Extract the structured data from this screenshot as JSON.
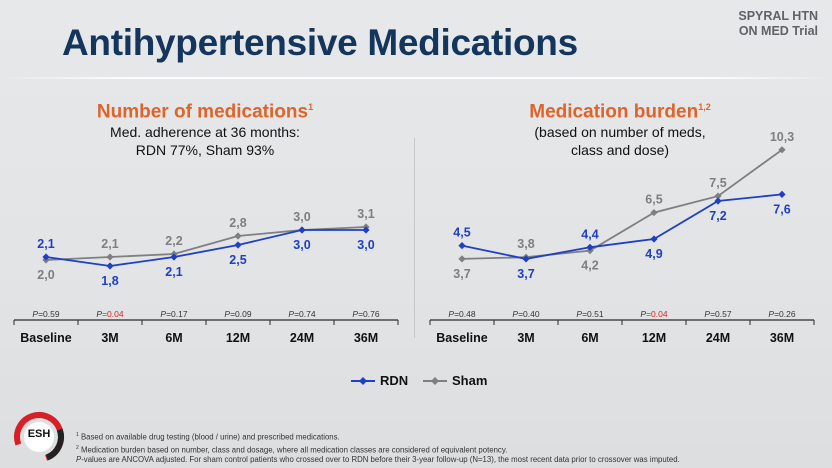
{
  "slide": {
    "title": "Antihypertensive Medications",
    "trial_tag_line1": "SPYRAL HTN",
    "trial_tag_line2": "ON MED Trial"
  },
  "colors": {
    "rdn": "#1f3fc4",
    "sham": "#7f7f7f",
    "title": "#14365c",
    "heading": "#e0632a",
    "p_significant": "#e0221b"
  },
  "legend": [
    {
      "label": "RDN",
      "color": "#1f3fc4"
    },
    {
      "label": "Sham",
      "color": "#7f7f7f"
    }
  ],
  "chart_data": [
    {
      "type": "line",
      "title": "Number of medications",
      "title_sup": "1",
      "subtitle_line1": "Med. adherence at 36 months:",
      "subtitle_line2": "RDN 77%, Sham 93%",
      "categories": [
        "Baseline",
        "3M",
        "6M",
        "12M",
        "24M",
        "36M"
      ],
      "series": [
        {
          "name": "RDN",
          "values": [
            2.1,
            1.8,
            2.1,
            2.5,
            3.0,
            3.0
          ],
          "labels": [
            "2,1",
            "1,8",
            "2,1",
            "2,5",
            "3,0",
            "3,0"
          ]
        },
        {
          "name": "Sham",
          "values": [
            2.0,
            2.1,
            2.2,
            2.8,
            3.0,
            3.1
          ],
          "labels": [
            "2,0",
            "2,1",
            "2,2",
            "2,8",
            "3,0",
            "3,1"
          ]
        }
      ],
      "p_values": [
        "0.59",
        "0.04",
        "0.17",
        "0.09",
        "0.74",
        "0.76"
      ],
      "p_significant": [
        false,
        true,
        false,
        false,
        false,
        false
      ],
      "p_prefix": "P"
    },
    {
      "type": "line",
      "title": "Medication burden",
      "title_sup": "1,2",
      "subtitle_line1": "(based on number of meds,",
      "subtitle_line2": "class and dose)",
      "categories": [
        "Baseline",
        "3M",
        "6M",
        "12M",
        "24M",
        "36M"
      ],
      "series": [
        {
          "name": "RDN",
          "values": [
            4.5,
            3.7,
            4.4,
            4.9,
            7.2,
            7.6
          ],
          "labels": [
            "4,5",
            "3,7",
            "4,4",
            "4,9",
            "7,2",
            "7,6"
          ]
        },
        {
          "name": "Sham",
          "values": [
            3.7,
            3.8,
            4.2,
            6.5,
            7.5,
            10.3
          ],
          "labels": [
            "3,7",
            "3,8",
            "4,2",
            "6,5",
            "7,5",
            "10,3"
          ]
        }
      ],
      "p_values": [
        "0.48",
        "0.40",
        "0.51",
        "0.04",
        "0.57",
        "0.26"
      ],
      "p_significant": [
        false,
        false,
        false,
        true,
        false,
        false
      ],
      "p_prefix": "P"
    }
  ],
  "footnotes": {
    "note1_mark": "1",
    "note1": "Based on available drug testing (blood / urine) and prescribed medications.",
    "note2_mark": "2",
    "note2": "Medication burden based on number, class and dosage, where all medication classes are considered of equivalent potency.",
    "note3_p": "P",
    "note3": "-values are ANCOVA adjusted. For sham control patients who crossed over to RDN before their 3-year follow-up (N=13), the most recent data prior to crossover was imputed."
  },
  "logo": {
    "text": "ESH"
  }
}
